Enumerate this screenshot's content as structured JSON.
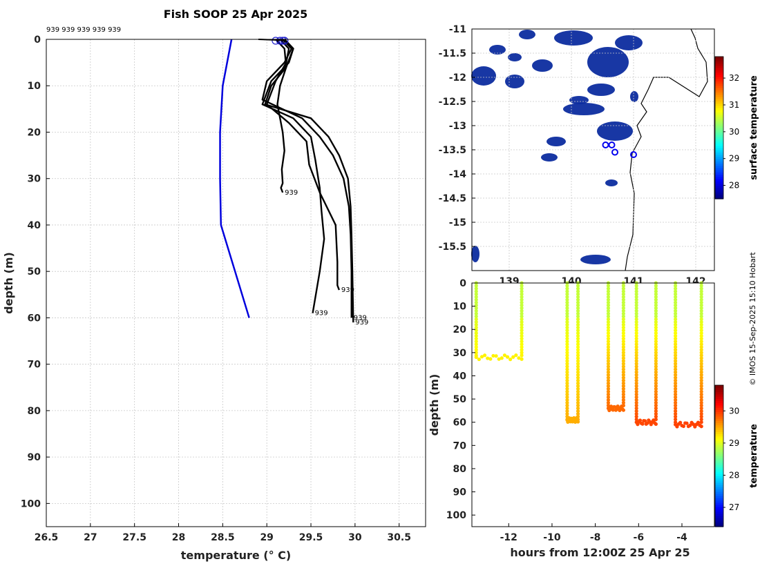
{
  "title": "Fish SOOP 25 Apr 2025",
  "credit": "© IMOS 15-Sep-2025 15:10 Hobart",
  "colors": {
    "climatology": "#0000dd",
    "profiles": "#000000",
    "land": "#000000"
  },
  "chart_data": [
    {
      "name": "profile",
      "type": "line",
      "xlabel": "temperature (° C)",
      "ylabel": "depth (m)",
      "xlim": [
        26.5,
        30.8
      ],
      "ylim": [
        0,
        105
      ],
      "y_reversed": true,
      "xticks": [
        "26.5",
        "27",
        "27.5",
        "28",
        "28.5",
        "29",
        "29.5",
        "30",
        "30.5"
      ],
      "yticks": [
        "0",
        "10",
        "20",
        "30",
        "40",
        "50",
        "60",
        "70",
        "80",
        "90",
        "100"
      ],
      "grid": true,
      "top_labels": "939 939 939 939 939",
      "climatology": {
        "x": [
          28.6,
          28.5,
          28.47,
          28.47,
          28.48,
          28.8
        ],
        "y": [
          0,
          10,
          20,
          30,
          40,
          60
        ]
      },
      "profiles": [
        {
          "label": "939",
          "x": [
            29.1,
            29.2,
            29.22,
            29.15,
            29.12,
            29.15,
            29.18,
            29.2,
            29.17,
            29.18,
            29.16,
            29.18
          ],
          "y": [
            0,
            2,
            6,
            10,
            14,
            17,
            20,
            24,
            28,
            31,
            32,
            33
          ]
        },
        {
          "label": "939",
          "x": [
            29.15,
            29.25,
            29.22,
            29.1,
            29.0,
            29.25,
            29.45,
            29.48,
            29.6,
            29.78,
            29.8,
            29.8,
            29.82
          ],
          "y": [
            0,
            2,
            5,
            9,
            14,
            18,
            22,
            27,
            33,
            40,
            48,
            53,
            54
          ]
        },
        {
          "label": "939",
          "x": [
            29.2,
            29.3,
            29.25,
            29.05,
            28.95,
            29.3,
            29.5,
            29.55,
            29.6,
            29.62,
            29.65,
            29.6,
            29.52
          ],
          "y": [
            0,
            2,
            5,
            9,
            14,
            17,
            21,
            26,
            32,
            37,
            43,
            50,
            59
          ]
        },
        {
          "label": "939",
          "x": [
            29.18,
            29.28,
            29.2,
            29.0,
            28.95,
            29.4,
            29.6,
            29.75,
            29.87,
            29.93,
            29.95,
            29.96,
            29.96
          ],
          "y": [
            0,
            2,
            5,
            9,
            13,
            17,
            21,
            25,
            30,
            36,
            42,
            50,
            60
          ]
        },
        {
          "label": "939",
          "x": [
            29.2,
            29.3,
            29.22,
            29.05,
            28.98,
            29.5,
            29.7,
            29.82,
            29.92,
            29.95,
            29.96,
            29.97,
            29.98
          ],
          "y": [
            0,
            2,
            6,
            10,
            14,
            17,
            21,
            25,
            30,
            36,
            42,
            50,
            61
          ]
        }
      ]
    },
    {
      "name": "map",
      "type": "heatmap",
      "colorbar_label": "surface temperature",
      "colorbar_ticks": [
        "28",
        "29",
        "30",
        "31",
        "32"
      ],
      "colorbar_range": [
        27.5,
        32.8
      ],
      "xlim": [
        138.4,
        142.3
      ],
      "ylim": [
        -16,
        -11
      ],
      "xticks": [
        "139",
        "140",
        "141",
        "142"
      ],
      "yticks": [
        "-11",
        "-11.5",
        "-12",
        "-12.5",
        "-13",
        "-13.5",
        "-14",
        "-14.5",
        "-15",
        "-15.5"
      ],
      "grid": true,
      "stations": {
        "lon": [
          140.55,
          140.65,
          140.7,
          141.0
        ],
        "lat": [
          -13.4,
          -13.4,
          -13.55,
          -13.6
        ]
      }
    },
    {
      "name": "section",
      "type": "scatter",
      "xlabel": "hours from 12:00Z 25 Apr 25",
      "ylabel": "depth (m)",
      "xlim": [
        -13.7,
        -2.5
      ],
      "ylim": [
        0,
        105
      ],
      "y_reversed": true,
      "xticks": [
        "-12",
        "-10",
        "-8",
        "-6",
        "-4"
      ],
      "yticks": [
        "0",
        "10",
        "20",
        "30",
        "40",
        "50",
        "60",
        "70",
        "80",
        "90",
        "100"
      ],
      "colorbar_label": "temperature",
      "colorbar_ticks": [
        "27",
        "28",
        "29",
        "30"
      ],
      "colorbar_range": [
        26.4,
        30.8
      ],
      "casts": [
        {
          "t": [
            -13.5,
            -11.4
          ],
          "maxdepth": 32,
          "bottom_temp": 29.2
        },
        {
          "t": [
            -9.3,
            -8.8
          ],
          "maxdepth": 59,
          "bottom_temp": 29.5
        },
        {
          "t": [
            -7.4,
            -6.7
          ],
          "maxdepth": 54,
          "bottom_temp": 29.8
        },
        {
          "t": [
            -6.1,
            -5.2
          ],
          "maxdepth": 60,
          "bottom_temp": 29.95
        },
        {
          "t": [
            -4.3,
            -3.1
          ],
          "maxdepth": 61,
          "bottom_temp": 29.97
        }
      ]
    }
  ]
}
